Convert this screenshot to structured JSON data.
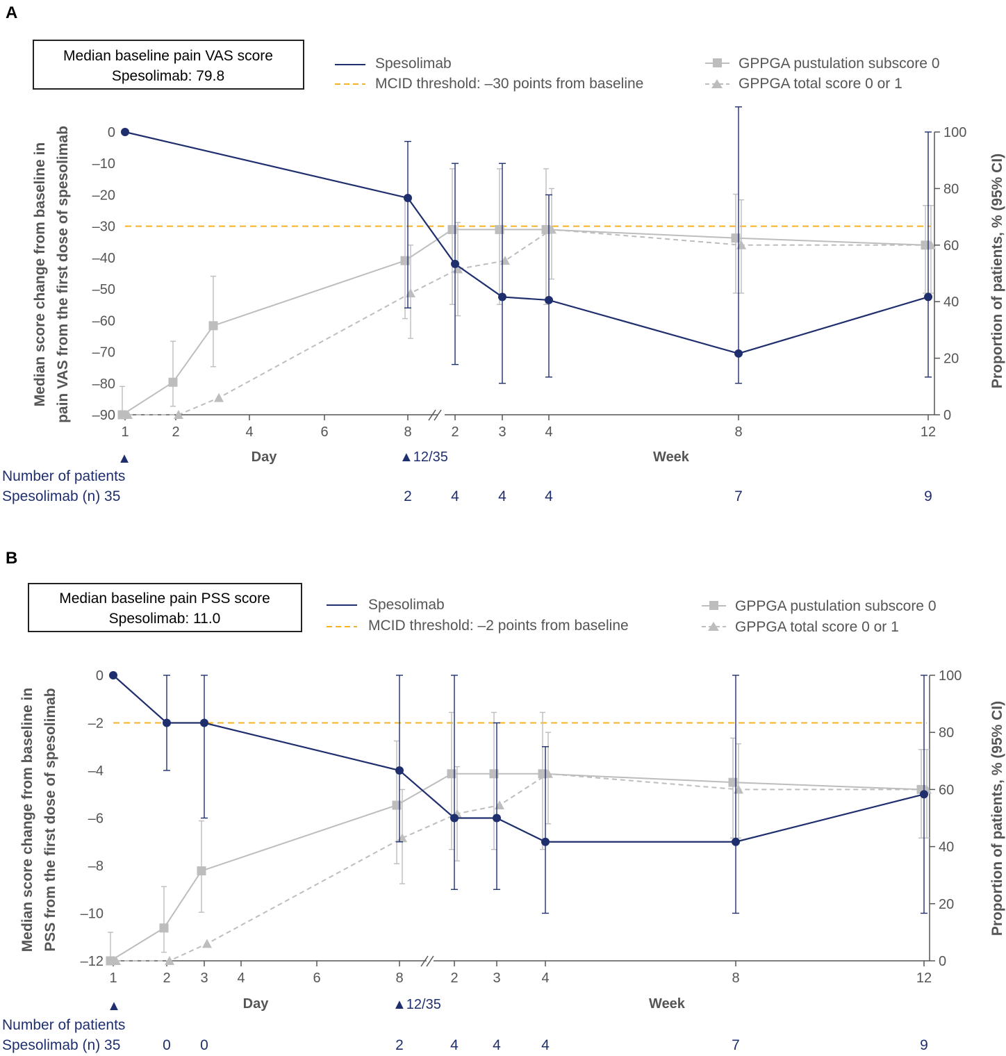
{
  "colors": {
    "navy": "#1f2f6e",
    "gray": "#bdbdbd",
    "gray_dark": "#a8a8a8",
    "orange": "#f5b323",
    "axis": "#555555"
  },
  "legend": {
    "spesolimab": "Spesolimab",
    "pustulation": "GPPGA pustulation subscore 0",
    "total": "GPPGA total score 0 or 1"
  },
  "x_axis": {
    "day_ticks": [
      "1",
      "2",
      "4",
      "6",
      "8"
    ],
    "day_ticks_b": [
      "1",
      "2",
      "3",
      "4",
      "6",
      "8"
    ],
    "week_ticks": [
      "2",
      "3",
      "4",
      "8",
      "12"
    ],
    "day_label": "Day",
    "week_label": "Week",
    "dose_marker": "▲",
    "second_dose_label": "▲12/35"
  },
  "right_axis": {
    "title": "Proportion of patients, % (95% CI)",
    "ticks": [
      "0",
      "20",
      "40",
      "60",
      "80",
      "100"
    ]
  },
  "patients": {
    "header": "Number of patients",
    "row_label": "Spesolimab (n) 35"
  },
  "chart_data": [
    {
      "panel": "A",
      "type": "line",
      "title": "",
      "info_box": [
        "Median baseline pain VAS score",
        "Spesolimab: 79.8"
      ],
      "mcid_label": "MCID threshold: –30 points from baseline",
      "mcid_value": -30,
      "ylabel": [
        "Median score change from baseline in",
        "pain VAS from the first dose of spesolimab"
      ],
      "left_ticks": [
        "0",
        "–10",
        "–20",
        "–30",
        "–40",
        "–50",
        "–60",
        "–70",
        "–80",
        "–90"
      ],
      "ylim_left": [
        -90,
        0
      ],
      "ylim_right": [
        0,
        100
      ],
      "x_categories": [
        "Day 1",
        "Day 2",
        "Day 4",
        "Day 6",
        "Day 8",
        "Week 2",
        "Week 3",
        "Week 4",
        "Week 8",
        "Week 12"
      ],
      "series": [
        {
          "name": "Spesolimab",
          "axis": "left",
          "points": [
            {
              "x": "Day 1",
              "y": 0
            },
            {
              "x": "Day 8",
              "y": -21,
              "lo": -56,
              "hi": -3
            },
            {
              "x": "Week 2",
              "y": -42,
              "lo": -74,
              "hi": -10
            },
            {
              "x": "Week 3",
              "y": -52.5,
              "lo": -80,
              "hi": -10
            },
            {
              "x": "Week 4",
              "y": -53.5,
              "lo": -78,
              "hi": -20
            },
            {
              "x": "Week 8",
              "y": -70.5,
              "lo": -80,
              "hi": 8
            },
            {
              "x": "Week 12",
              "y": -52.5,
              "lo": -78,
              "hi": 0
            }
          ]
        },
        {
          "name": "GPPGA pustulation subscore 0",
          "axis": "right",
          "points": [
            {
              "x": "Day 1",
              "y": 0,
              "lo": 0,
              "hi": 10
            },
            {
              "x": "Day 2",
              "y": 11.5,
              "lo": 3,
              "hi": 26
            },
            {
              "x": "Day 3",
              "y": 31.5,
              "lo": 17,
              "hi": 49
            },
            {
              "x": "Day 8",
              "y": 54.5,
              "lo": 34,
              "hi": 77
            },
            {
              "x": "Week 2",
              "y": 65.5,
              "lo": 39,
              "hi": 87
            },
            {
              "x": "Week 3",
              "y": 65.5,
              "lo": 39,
              "hi": 87
            },
            {
              "x": "Week 4",
              "y": 65.5,
              "lo": 39,
              "hi": 87
            },
            {
              "x": "Week 8",
              "y": 62.5,
              "lo": 43,
              "hi": 78
            },
            {
              "x": "Week 12",
              "y": 60,
              "lo": 43,
              "hi": 74
            }
          ]
        },
        {
          "name": "GPPGA total score 0 or 1",
          "axis": "right",
          "points": [
            {
              "x": "Day 1",
              "y": 0
            },
            {
              "x": "Day 2",
              "y": 0
            },
            {
              "x": "Day 3",
              "y": 6
            },
            {
              "x": "Day 8",
              "y": 43,
              "lo": 27,
              "hi": 60
            },
            {
              "x": "Week 2",
              "y": 51.5,
              "lo": 35,
              "hi": 68
            },
            {
              "x": "Week 3",
              "y": 54.5
            },
            {
              "x": "Week 4",
              "y": 65.5,
              "lo": 48,
              "hi": 80
            },
            {
              "x": "Week 8",
              "y": 60,
              "lo": 43,
              "hi": 76
            },
            {
              "x": "Week 12",
              "y": 60,
              "lo": 43,
              "hi": 74
            }
          ]
        }
      ],
      "patient_counts": [
        {
          "x": "Day 8",
          "n": "2"
        },
        {
          "x": "Week 2",
          "n": "4"
        },
        {
          "x": "Week 3",
          "n": "4"
        },
        {
          "x": "Week 4",
          "n": "4"
        },
        {
          "x": "Week 8",
          "n": "7"
        },
        {
          "x": "Week 12",
          "n": "9"
        }
      ]
    },
    {
      "panel": "B",
      "type": "line",
      "title": "",
      "info_box": [
        "Median baseline pain PSS score",
        "Spesolimab: 11.0"
      ],
      "mcid_label": "MCID threshold: –2 points from baseline",
      "mcid_value": -2,
      "ylabel": [
        "Median score change from baseline in",
        "PSS from the first dose of spesolimab"
      ],
      "left_ticks": [
        "0",
        "–2",
        "–4",
        "–6",
        "–8",
        "–10",
        "–12"
      ],
      "ylim_left": [
        -12,
        0
      ],
      "ylim_right": [
        0,
        100
      ],
      "x_categories": [
        "Day 1",
        "Day 2",
        "Day 3",
        "Day 4",
        "Day 6",
        "Day 8",
        "Week 2",
        "Week 3",
        "Week 4",
        "Week 8",
        "Week 12"
      ],
      "series": [
        {
          "name": "Spesolimab",
          "axis": "left",
          "points": [
            {
              "x": "Day 1",
              "y": 0
            },
            {
              "x": "Day 2",
              "y": -2,
              "lo": -4,
              "hi": 0
            },
            {
              "x": "Day 3",
              "y": -2,
              "lo": -6,
              "hi": 0
            },
            {
              "x": "Day 8",
              "y": -4,
              "lo": -7,
              "hi": 0
            },
            {
              "x": "Week 2",
              "y": -6,
              "lo": -9,
              "hi": 0
            },
            {
              "x": "Week 3",
              "y": -6,
              "lo": -9,
              "hi": -2
            },
            {
              "x": "Week 4",
              "y": -7,
              "lo": -10,
              "hi": -3
            },
            {
              "x": "Week 8",
              "y": -7,
              "lo": -10,
              "hi": 0
            },
            {
              "x": "Week 12",
              "y": -5,
              "lo": -10,
              "hi": 0
            }
          ]
        },
        {
          "name": "GPPGA pustulation subscore 0",
          "axis": "right",
          "points": [
            {
              "x": "Day 1",
              "y": 0,
              "lo": 0,
              "hi": 10
            },
            {
              "x": "Day 2",
              "y": 11.5,
              "lo": 3,
              "hi": 26
            },
            {
              "x": "Day 3",
              "y": 31.5,
              "lo": 17,
              "hi": 49
            },
            {
              "x": "Day 8",
              "y": 54.5,
              "lo": 34,
              "hi": 77
            },
            {
              "x": "Week 2",
              "y": 65.5,
              "lo": 39,
              "hi": 87
            },
            {
              "x": "Week 3",
              "y": 65.5,
              "lo": 39,
              "hi": 87
            },
            {
              "x": "Week 4",
              "y": 65.5,
              "lo": 39,
              "hi": 87
            },
            {
              "x": "Week 8",
              "y": 62.5,
              "lo": 43,
              "hi": 78
            },
            {
              "x": "Week 12",
              "y": 60,
              "lo": 43,
              "hi": 74
            }
          ]
        },
        {
          "name": "GPPGA total score 0 or 1",
          "axis": "right",
          "points": [
            {
              "x": "Day 1",
              "y": 0
            },
            {
              "x": "Day 2",
              "y": 0
            },
            {
              "x": "Day 3",
              "y": 6
            },
            {
              "x": "Day 8",
              "y": 43,
              "lo": 27,
              "hi": 60
            },
            {
              "x": "Week 2",
              "y": 51.5,
              "lo": 35,
              "hi": 68
            },
            {
              "x": "Week 3",
              "y": 54.5
            },
            {
              "x": "Week 4",
              "y": 65.5,
              "lo": 48,
              "hi": 80
            },
            {
              "x": "Week 8",
              "y": 60,
              "lo": 43,
              "hi": 76
            },
            {
              "x": "Week 12",
              "y": 60,
              "lo": 43,
              "hi": 74
            }
          ]
        }
      ],
      "patient_counts": [
        {
          "x": "Day 2",
          "n": "0"
        },
        {
          "x": "Day 3",
          "n": "0"
        },
        {
          "x": "Day 8",
          "n": "2"
        },
        {
          "x": "Week 2",
          "n": "4"
        },
        {
          "x": "Week 3",
          "n": "4"
        },
        {
          "x": "Week 4",
          "n": "4"
        },
        {
          "x": "Week 8",
          "n": "7"
        },
        {
          "x": "Week 12",
          "n": "9"
        }
      ]
    }
  ]
}
